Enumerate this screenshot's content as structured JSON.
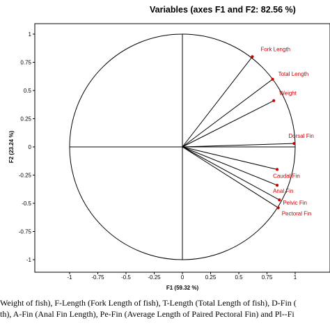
{
  "chart_data": {
    "type": "scatter",
    "subtype": "correlation-circle",
    "title": "Variables (axes F1 and F2: 82.56 %)",
    "xlabel": "F1 (59.32 %)",
    "ylabel": "F2 (23.24 %)",
    "xlim": [
      -1,
      1
    ],
    "ylim": [
      -1,
      1
    ],
    "x_ticks": [
      "-1",
      "-0.75",
      "-0.5",
      "-0.25",
      "0",
      "0.25",
      "0.5",
      "0.75",
      "1"
    ],
    "y_ticks": [
      "1",
      "0.75",
      "0.5",
      "0.25",
      "0",
      "-0.25",
      "-0.5",
      "-0.75",
      "-1"
    ],
    "grid": false,
    "legend": "none",
    "unit_circle": true,
    "vector_color": "#000000",
    "point_color": "#cc0000",
    "label_color": "#cc0000",
    "points": [
      {
        "label": "Fork Length",
        "x": 0.62,
        "y": 0.8
      },
      {
        "label": "Total Length",
        "x": 0.8,
        "y": 0.6
      },
      {
        "label": "Weight",
        "x": 0.81,
        "y": 0.41
      },
      {
        "label": "Dorsal Fin",
        "x": 0.99,
        "y": 0.03
      },
      {
        "label": "Caudal Fin",
        "x": 0.84,
        "y": -0.2
      },
      {
        "label": "Anal Fin",
        "x": 0.84,
        "y": -0.34
      },
      {
        "label": "Pelvic Fin",
        "x": 0.86,
        "y": -0.47
      },
      {
        "label": "Pectoral Fin",
        "x": 0.85,
        "y": -0.54
      }
    ]
  },
  "caption": {
    "lines": [
      "Weight of fish), F-Length (Fork Length of fish), T-Length (Total Length of fish), D-Fin (",
      "th), A-Fin (Anal Fin Length), Pe-Fin (Average Length of Paired Pectoral Fin) and Pl--Fi"
    ]
  }
}
